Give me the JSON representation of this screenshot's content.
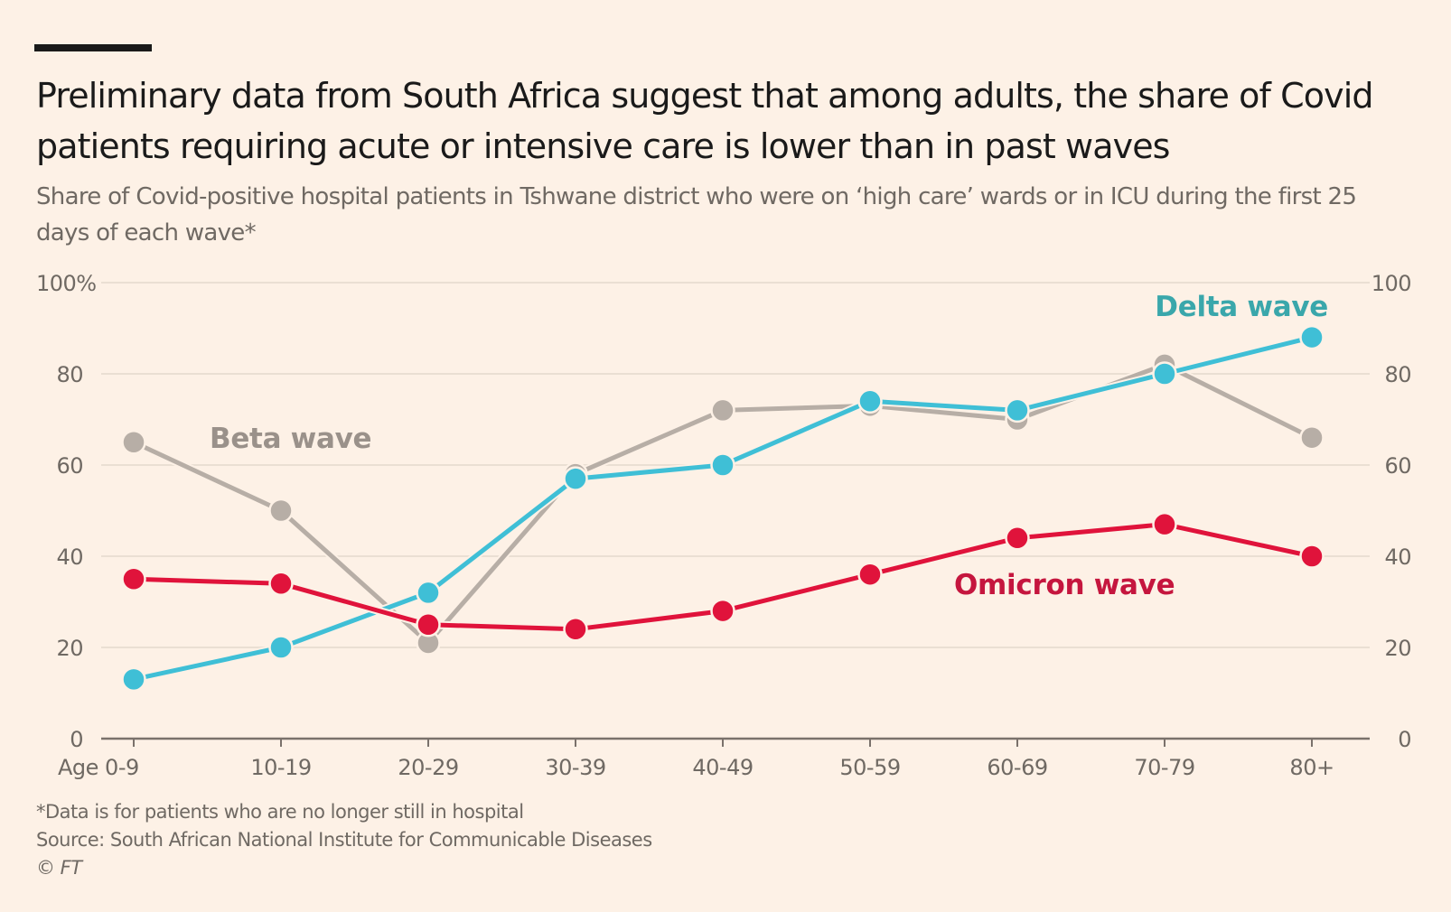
{
  "header": {
    "title": "Preliminary data from South Africa suggest that among adults, the share of Covid patients requiring acute or intensive care is lower than in past waves",
    "subtitle": "Share of Covid-positive hospital patients in Tshwane district who were on ‘high care’ wards or in ICU during the first 25 days of each wave*"
  },
  "footer": {
    "note": "*Data is for patients who are no longer still in hospital",
    "source": "Source: South African National Institute for Communicable Diseases",
    "credit": "© FT"
  },
  "colors": {
    "background": "#fdf1e6",
    "gridline": "#eadfd3",
    "axis": "#7a716b",
    "delta_line": "#3fbfd6",
    "delta_label": "#3aa7ab",
    "omicron_line": "#e0133b",
    "omicron_label": "#c5163e",
    "beta_line": "#b7aea6",
    "beta_label": "#9a918a"
  },
  "chart_data": {
    "type": "line",
    "title": "Preliminary data from South Africa suggest that among adults, the share of Covid patients requiring acute or intensive care is lower than in past waves",
    "subtitle": "Share of Covid-positive hospital patients in Tshwane district who were on ‘high care’ wards or in ICU during the first 25 days of each wave*",
    "xlabel": "",
    "ylabel": "",
    "categories": [
      "Age 0-9",
      "10-19",
      "20-29",
      "30-39",
      "40-49",
      "50-59",
      "60-69",
      "70-79",
      "80+"
    ],
    "ylim": [
      0,
      100
    ],
    "yticks_left": [
      "0",
      "20",
      "40",
      "60",
      "80",
      "100%"
    ],
    "yticks_right": [
      "0",
      "20",
      "40",
      "60",
      "80",
      "100"
    ],
    "ytick_values": [
      0,
      20,
      40,
      60,
      80,
      100
    ],
    "grid": true,
    "legend": "inline labels",
    "series": [
      {
        "name": "Beta wave",
        "key": "beta",
        "label": "Beta wave",
        "values": [
          65,
          50,
          21,
          58,
          72,
          73,
          70,
          82,
          66
        ]
      },
      {
        "name": "Delta wave",
        "key": "delta",
        "label": "Delta wave",
        "values": [
          13,
          20,
          32,
          57,
          60,
          74,
          72,
          80,
          88
        ]
      },
      {
        "name": "Omicron wave",
        "key": "omicron",
        "label": "Omicron wave",
        "values": [
          35,
          34,
          25,
          24,
          28,
          36,
          44,
          47,
          40
        ]
      }
    ]
  }
}
